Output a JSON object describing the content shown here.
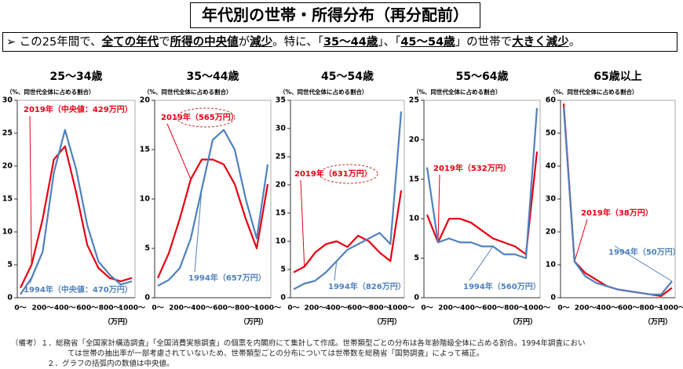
{
  "header": {
    "title": "年代別の世帯・所得分布（再分配前）",
    "subtitle": [
      "➢ この25年間で、",
      "全ての年代",
      "で",
      "所得の中央値",
      "が",
      "減少",
      "。特に、「",
      "35～44歳",
      "」、「",
      "45～54歳",
      "」の世帯で",
      "大きく減少",
      "。"
    ]
  },
  "notes": [
    "（備考）１．総務省「全国家計構造調査」「全国消費実態調査」の個票を内閣府にて集計して作成。世帯類型ごとの分布は各年齢階級全体に占める割合。1994年調査におい",
    "ては世帯の抽出率が一部考慮されていないため、世帯類型ごとの分布については世帯数を総務省「国勢調査」によって補正。",
    "２．グラフの括弧内の数値は中央値。"
  ],
  "chart_data": [
    {
      "type": "line",
      "title": "25～34歳",
      "y_label": "（%、同世代全体に占める割合）",
      "x_label": "（万円）",
      "categories": [
        "0～",
        null,
        "200～",
        null,
        "400～",
        null,
        "600～",
        null,
        "800～",
        null,
        "1000～"
      ],
      "ylim": [
        0,
        30
      ],
      "yticks": [
        0,
        5,
        10,
        15,
        20,
        25,
        30
      ],
      "series": [
        {
          "name": "2019年（中央値：429万円）",
          "color": "#e60012",
          "values": [
            1.5,
            5,
            12,
            21,
            23,
            16,
            8,
            4.5,
            3,
            2.5,
            3
          ]
        },
        {
          "name": "1994年（中央値：470万円）",
          "color": "#4f81bd",
          "values": [
            0.5,
            3,
            7,
            19,
            25.5,
            19.5,
            11,
            5.5,
            3.5,
            2,
            2.5
          ]
        }
      ]
    },
    {
      "type": "line",
      "title": "35～44歳",
      "y_label": "（%、同世代全体に占める割合）",
      "x_label": "（万円）",
      "categories": [
        "0～",
        null,
        "200～",
        null,
        "400～",
        null,
        "600～",
        null,
        "800～",
        null,
        "1000～"
      ],
      "ylim": [
        0,
        20
      ],
      "yticks": [
        0,
        5,
        10,
        15,
        20
      ],
      "series": [
        {
          "name": "2019年（565万円）",
          "color": "#e60012",
          "values": [
            2,
            4.5,
            8,
            12,
            14,
            14,
            13.5,
            11.5,
            8,
            5,
            11.5
          ]
        },
        {
          "name": "1994年（657万円）",
          "color": "#4f81bd",
          "values": [
            1.2,
            1.8,
            3,
            6,
            11,
            16,
            17,
            15,
            10,
            6,
            13.5
          ]
        }
      ]
    },
    {
      "type": "line",
      "title": "45～54歳",
      "y_label": "（%、同世代全体に占める割合）",
      "x_label": "（万円）",
      "categories": [
        "0～",
        null,
        "200～",
        null,
        "400～",
        null,
        "600～",
        null,
        "800～",
        null,
        "1000～"
      ],
      "ylim": [
        0,
        35
      ],
      "yticks": [
        0,
        5,
        10,
        15,
        20,
        25,
        30,
        35
      ],
      "series": [
        {
          "name": "2019年（631万円）",
          "color": "#e60012",
          "values": [
            4.5,
            5.5,
            8,
            9.5,
            10,
            9,
            11,
            10,
            8,
            6.5,
            19
          ]
        },
        {
          "name": "1994年（826万円）",
          "color": "#4f81bd",
          "values": [
            1.5,
            2.5,
            3,
            4.5,
            6.5,
            8.5,
            9.5,
            10.5,
            11.5,
            9.5,
            33
          ]
        }
      ]
    },
    {
      "type": "line",
      "title": "55～64歳",
      "y_label": "（%、同世代全体に占める割合）",
      "x_label": "（万円）",
      "categories": [
        "0～",
        null,
        "200～",
        null,
        "400～",
        null,
        "600～",
        null,
        "800～",
        null,
        "1000～"
      ],
      "ylim": [
        0,
        25
      ],
      "yticks": [
        0,
        5,
        10,
        15,
        20,
        25
      ],
      "series": [
        {
          "name": "2019年（532万円）",
          "color": "#e60012",
          "values": [
            10.5,
            7,
            10,
            10,
            9.5,
            8.5,
            7.5,
            7,
            6.5,
            5.5,
            18.5
          ]
        },
        {
          "name": "1994年（560万円）",
          "color": "#4f81bd",
          "values": [
            16.5,
            7,
            7.5,
            7,
            7,
            6.5,
            6.5,
            5.5,
            5.5,
            5,
            24
          ]
        }
      ]
    },
    {
      "type": "line",
      "title": "65歳以上",
      "y_label": "（%、同世代全体に占める割合）",
      "x_label": "（万円）",
      "categories": [
        "0～",
        null,
        "200～",
        null,
        "400～",
        null,
        "600～",
        null,
        "800～",
        null,
        "1000～"
      ],
      "ylim": [
        0,
        60
      ],
      "yticks": [
        0,
        10,
        20,
        30,
        40,
        50,
        60
      ],
      "series": [
        {
          "name": "2019年（38万円）",
          "color": "#e60012",
          "values": [
            59,
            11,
            7.5,
            5.5,
            3.5,
            2.5,
            2,
            1.5,
            1,
            0.5,
            3
          ]
        },
        {
          "name": "1994年（50万円）",
          "color": "#4f81bd",
          "values": [
            58,
            11,
            6.5,
            4.5,
            3.5,
            2.5,
            2,
            1.5,
            1,
            1,
            5
          ]
        }
      ]
    }
  ]
}
